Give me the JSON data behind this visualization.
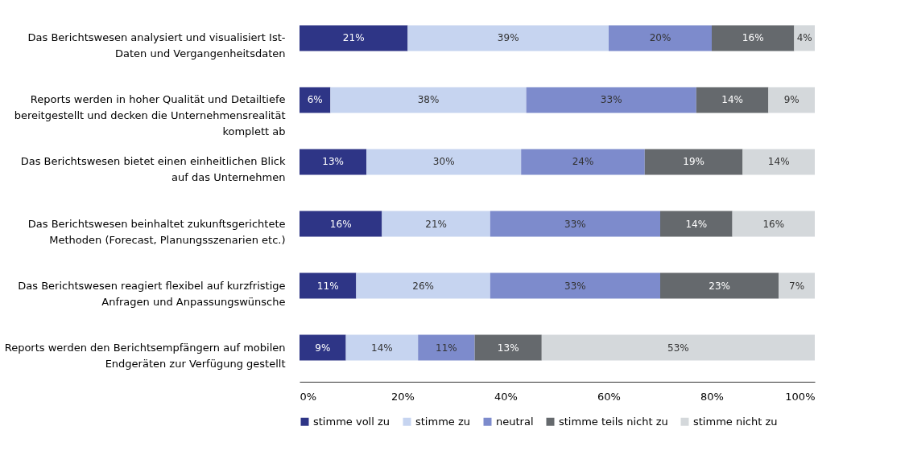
{
  "chart_data": {
    "type": "bar",
    "orientation": "horizontal",
    "stacked": true,
    "categories": [
      "Das Berichtswesen analysiert und visualisiert Ist-Daten und Vergangenheitsdaten",
      "Reports werden in hoher Qualität und Detailtiefe bereitgestellt und decken die Unternehmensrealität komplett ab",
      "Das Berichtswesen bietet einen einheitlichen Blick auf das Unternehmen",
      "Das Berichtswesen beinhaltet zukunftsgerichtete Methoden (Forecast, Planungsszenarien etc.)",
      "Das Berichtswesen reagiert flexibel auf kurzfristige Anfragen und Anpassungswünsche",
      "Reports werden den Berichtsempfängern auf mobilen Endgeräten zur Verfügung gestellt"
    ],
    "series": [
      {
        "name": "stimme voll zu",
        "color": "#2e3586",
        "values": [
          21,
          6,
          13,
          16,
          11,
          9
        ],
        "value_labels": [
          "21%",
          "6%",
          "13%",
          "16%",
          "11%",
          "9%"
        ]
      },
      {
        "name": "stimme zu",
        "color": "#c6d4f0",
        "values": [
          39,
          38,
          30,
          21,
          26,
          14
        ],
        "value_labels": [
          "39%",
          "38%",
          "30%",
          "21%",
          "26%",
          "14%"
        ]
      },
      {
        "name": "neutral",
        "color": "#7d8bcc",
        "values": [
          20,
          33,
          24,
          33,
          33,
          11
        ],
        "value_labels": [
          "20%",
          "33%",
          "24%",
          "33%",
          "33%",
          "11%"
        ]
      },
      {
        "name": "stimme teils nicht zu",
        "color": "#65696d",
        "values": [
          16,
          14,
          19,
          14,
          23,
          13
        ],
        "value_labels": [
          "16%",
          "14%",
          "19%",
          "14%",
          "23%",
          "13%"
        ]
      },
      {
        "name": "stimme nicht zu",
        "color": "#d4d8db",
        "values": [
          4,
          9,
          14,
          16,
          7,
          53
        ],
        "value_labels": [
          "4%",
          "9%",
          "14%",
          "16%",
          "7%",
          "53%"
        ]
      }
    ],
    "xlim": [
      0,
      100
    ],
    "xticks": [
      {
        "value": 0,
        "label": "0%"
      },
      {
        "value": 20,
        "label": "20%"
      },
      {
        "value": 40,
        "label": "40%"
      },
      {
        "value": 60,
        "label": "60%"
      },
      {
        "value": 80,
        "label": "80%"
      },
      {
        "value": 100,
        "label": "100%"
      }
    ],
    "grid": false,
    "legend": "bottom"
  }
}
